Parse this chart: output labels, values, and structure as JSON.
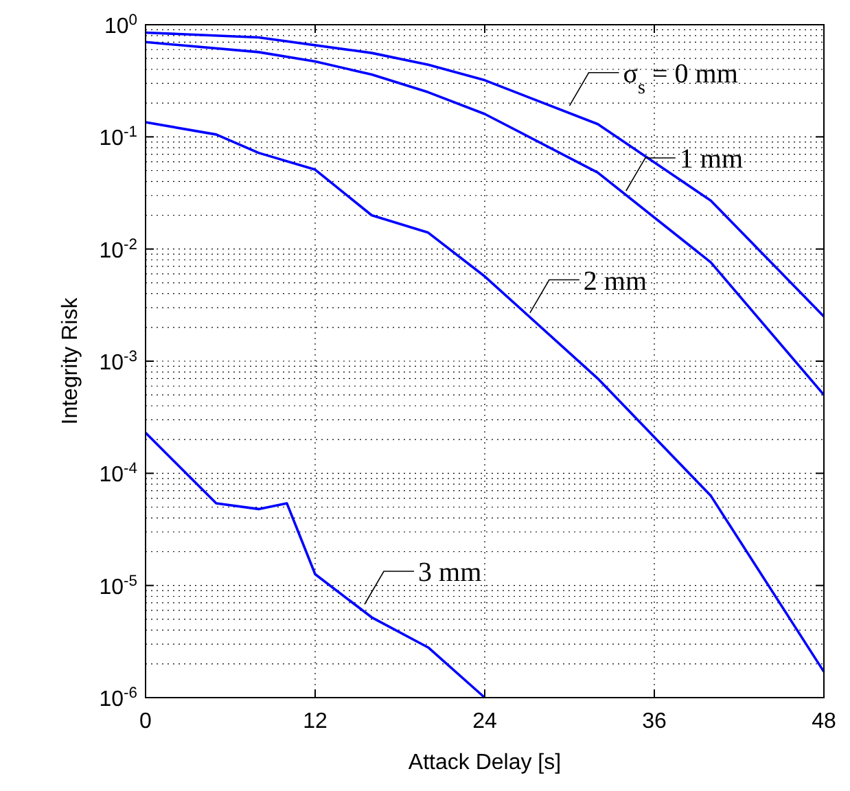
{
  "chart_data": {
    "type": "line",
    "xlabel": "Attack Delay [s]",
    "ylabel": "Integrity Risk",
    "log": "y",
    "grid": true,
    "line_style": "solid",
    "marker": "none",
    "xlim": [
      0,
      48
    ],
    "xticks": [
      0,
      12,
      24,
      36,
      48
    ],
    "ylim": [
      1e-06,
      1
    ],
    "yticks": [
      {
        "value": 1e-06,
        "label": "10$^{-6}$"
      },
      {
        "value": 1e-05,
        "label": "10$^{-5}$"
      },
      {
        "value": 0.0001,
        "label": "10$^{-4}$"
      },
      {
        "value": 0.001,
        "label": "10$^{-3}$"
      },
      {
        "value": 0.01,
        "label": "10$^{-2}$"
      },
      {
        "value": 0.1,
        "label": "10$^{-1}$"
      },
      {
        "value": 1,
        "label": "10$^{0}$"
      }
    ],
    "series": [
      {
        "color": "#0000ff",
        "x": [
          0,
          8,
          16,
          20,
          24,
          32,
          40,
          48
        ],
        "values": [
          0.85,
          0.77,
          0.56,
          0.44,
          0.32,
          0.13,
          0.027,
          0.0025
        ]
      },
      {
        "color": "#0000ff",
        "x": [
          0,
          8,
          12,
          16,
          20,
          24,
          32,
          40,
          48
        ],
        "values": [
          0.7,
          0.57,
          0.47,
          0.36,
          0.25,
          0.16,
          0.048,
          0.0076,
          0.0005
        ]
      },
      {
        "color": "#0000ff",
        "x": [
          0,
          5,
          8,
          12,
          16,
          20,
          24,
          32,
          40,
          48
        ],
        "values": [
          0.135,
          0.105,
          0.072,
          0.051,
          0.02,
          0.014,
          0.0057,
          0.0007,
          6.3e-05,
          1.7e-06
        ]
      },
      {
        "color": "#0000ff",
        "x": [
          0,
          5,
          8,
          10,
          12,
          16,
          20,
          24
        ],
        "values": [
          0.00023,
          5.4e-05,
          4.8e-05,
          5.4e-05,
          1.26e-05,
          5.2e-06,
          2.8e-06,
          1e-06
        ]
      }
    ],
    "annotations": [
      {
        "text": "σ$_{s}$ = 0 mm",
        "x": 30,
        "y": 0.19
      },
      {
        "text": "1 mm",
        "x": 34,
        "y": 0.033
      },
      {
        "text": "2 mm",
        "x": 27.2,
        "y": 0.0027
      },
      {
        "text": "3 mm",
        "x": 15.5,
        "y": 6.8e-06
      }
    ]
  }
}
